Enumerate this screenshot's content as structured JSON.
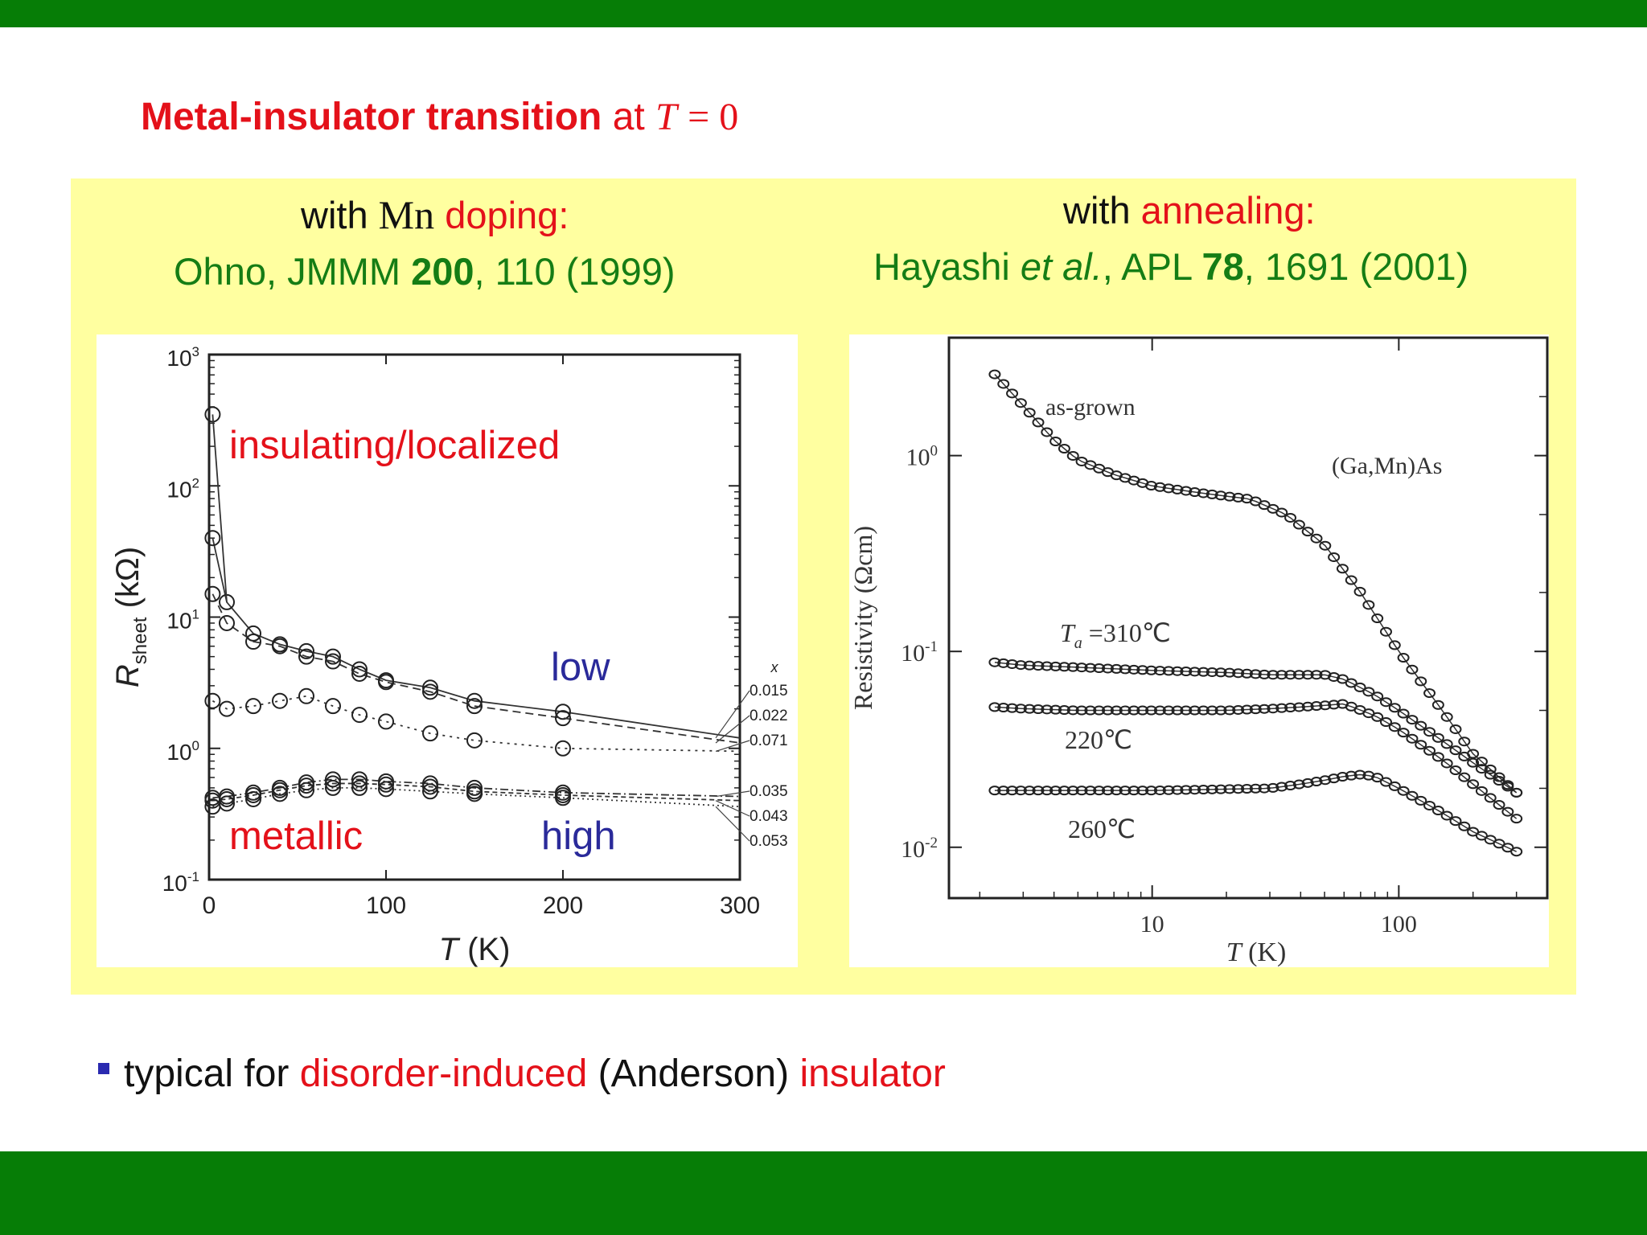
{
  "slide": {
    "title_bold": "Metal-insulator transition",
    "title_at": "at",
    "title_T": "T",
    "title_eq": "= 0",
    "bar_color": "#067d06",
    "panel_color": "#ffffa0"
  },
  "left": {
    "cap_with": "with",
    "cap_mn": "Mn",
    "cap_doping": "doping:",
    "ref_a": "Ohno, JMMM ",
    "ref_vol": "200",
    "ref_b": ", 110 (1999)",
    "label_insulating": "insulating/localized",
    "label_metallic": "metallic",
    "label_low": "low",
    "label_high": "high"
  },
  "right": {
    "cap_with": "with",
    "cap_annealing": "annealing:",
    "ref_a": "Hayashi ",
    "ref_etal": "et al.",
    "ref_b": ", APL ",
    "ref_vol": "78",
    "ref_c": ", 1691 (2001)"
  },
  "bullet": {
    "p1": "typical for",
    "p2": "disorder-induced",
    "p3": "(Anderson)",
    "p4": "insulator"
  },
  "chart_data": [
    {
      "type": "line",
      "xlabel": "T (K)",
      "ylabel": "R_sheet (kΩ)",
      "ylabel_main": "R",
      "ylabel_sub": "sheet",
      "ylabel_unit": "(kΩ)",
      "xlim": [
        0,
        300
      ],
      "ylim": [
        0.1,
        1000
      ],
      "yscale": "log",
      "x_ticks": [
        "0",
        "100",
        "200",
        "300"
      ],
      "y_ticks": [
        {
          "base": "10",
          "exp": "3",
          "value": 1000
        },
        {
          "base": "10",
          "exp": "2",
          "value": 100
        },
        {
          "base": "10",
          "exp": "1",
          "value": 10
        },
        {
          "base": "10",
          "exp": "0",
          "value": 1
        },
        {
          "base": "10",
          "exp": "-1",
          "value": 0.1
        }
      ],
      "legend_title": "x",
      "series": [
        {
          "name": "0.015",
          "dash": "",
          "x": [
            2,
            10,
            25,
            40,
            55,
            70,
            85,
            100,
            125,
            150,
            200,
            300
          ],
          "y": [
            40,
            13,
            7.5,
            6.2,
            5.5,
            5,
            4,
            3.3,
            2.9,
            2.3,
            1.9,
            1.2
          ]
        },
        {
          "name": "0.022",
          "dash": "10 6",
          "x": [
            2,
            10,
            25,
            40,
            55,
            70,
            85,
            100,
            125,
            150,
            200,
            300
          ],
          "y": [
            15,
            9,
            6.5,
            6,
            5,
            4.6,
            3.7,
            3.2,
            2.7,
            2.1,
            1.7,
            1.1
          ]
        },
        {
          "name": "0.071",
          "dash": "3 6",
          "x": [
            2,
            10,
            25,
            40,
            55,
            70,
            85,
            100,
            125,
            150,
            200,
            300
          ],
          "y": [
            2.3,
            2.0,
            2.1,
            2.3,
            2.5,
            2.1,
            1.8,
            1.6,
            1.3,
            1.15,
            1.0,
            0.95
          ]
        },
        {
          "name": "0.035",
          "dash": "10 4 2 4",
          "x": [
            2,
            10,
            25,
            40,
            55,
            70,
            85,
            100,
            125,
            150,
            200,
            300
          ],
          "y": [
            0.42,
            0.43,
            0.46,
            0.5,
            0.55,
            0.58,
            0.58,
            0.56,
            0.54,
            0.5,
            0.46,
            0.43
          ]
        },
        {
          "name": "0.043",
          "dash": "6 4",
          "x": [
            2,
            10,
            25,
            40,
            55,
            70,
            85,
            100,
            125,
            150,
            200,
            300
          ],
          "y": [
            0.4,
            0.41,
            0.44,
            0.48,
            0.52,
            0.54,
            0.54,
            0.53,
            0.51,
            0.47,
            0.44,
            0.4
          ]
        },
        {
          "name": "0.053",
          "dash": "2 4",
          "x": [
            2,
            10,
            25,
            40,
            55,
            70,
            85,
            100,
            125,
            150,
            200,
            300
          ],
          "y": [
            0.36,
            0.38,
            0.41,
            0.45,
            0.48,
            0.5,
            0.5,
            0.49,
            0.47,
            0.45,
            0.42,
            0.36
          ]
        }
      ],
      "extra_point": {
        "x": 2,
        "y": 350
      }
    },
    {
      "type": "scatter",
      "xlabel": "T (K)",
      "ylabel": "Resistivity (Ωcm)",
      "xscale": "log",
      "yscale": "log",
      "xlim": [
        1.5,
        400
      ],
      "ylim": [
        0.0055,
        4
      ],
      "x_ticks": [
        "10",
        "100"
      ],
      "y_ticks": [
        {
          "base": "10",
          "exp": "0",
          "value": 1
        },
        {
          "base": "10",
          "exp": "-1",
          "value": 0.1
        },
        {
          "base": "10",
          "exp": "-2",
          "value": 0.01
        }
      ],
      "label_sample": "(Ga,Mn)As",
      "series": [
        {
          "name": "as-grown",
          "x": [
            2.3,
            3,
            4,
            5,
            7,
            10,
            15,
            20,
            25,
            35,
            50,
            70,
            100,
            150,
            200,
            300
          ],
          "y": [
            2.6,
            1.8,
            1.2,
            0.95,
            0.8,
            0.7,
            0.65,
            0.62,
            0.6,
            0.5,
            0.35,
            0.2,
            0.1,
            0.05,
            0.03,
            0.019
          ]
        },
        {
          "name": "T_a =310℃",
          "x": [
            2.3,
            3,
            5,
            10,
            20,
            30,
            40,
            50,
            60,
            80,
            100,
            150,
            200,
            300
          ],
          "y": [
            0.088,
            0.085,
            0.083,
            0.08,
            0.078,
            0.076,
            0.076,
            0.076,
            0.072,
            0.06,
            0.05,
            0.035,
            0.027,
            0.019
          ]
        },
        {
          "name": "220℃",
          "x": [
            2.3,
            3,
            5,
            10,
            20,
            30,
            40,
            50,
            60,
            80,
            100,
            150,
            200,
            300
          ],
          "y": [
            0.052,
            0.051,
            0.05,
            0.05,
            0.05,
            0.051,
            0.052,
            0.053,
            0.054,
            0.047,
            0.04,
            0.028,
            0.021,
            0.014
          ]
        },
        {
          "name": "260℃",
          "x": [
            2.3,
            3,
            5,
            10,
            20,
            30,
            40,
            50,
            60,
            70,
            80,
            100,
            150,
            200,
            300
          ],
          "y": [
            0.0195,
            0.0195,
            0.0195,
            0.0195,
            0.0198,
            0.02,
            0.021,
            0.022,
            0.023,
            0.0235,
            0.023,
            0.02,
            0.015,
            0.012,
            0.0095
          ]
        }
      ],
      "series_labels": [
        {
          "text_main": "as-grown",
          "sub": ""
        },
        {
          "text_main": "T",
          "sub": "a",
          "rest": " =310℃"
        },
        {
          "text_main": "220℃",
          "sub": ""
        },
        {
          "text_main": "260℃",
          "sub": ""
        }
      ]
    }
  ]
}
